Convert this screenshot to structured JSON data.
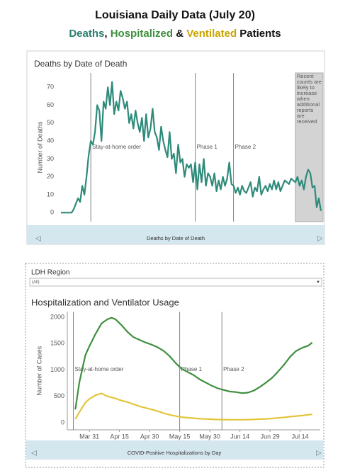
{
  "header": {
    "title": "Louisiana Daily Data (July 20)",
    "subtitle": [
      {
        "text": "Deaths",
        "color": "#2a7f6f"
      },
      {
        "text": ", ",
        "color": "#111111"
      },
      {
        "text": "Hospitalized",
        "color": "#3f8f3f"
      },
      {
        "text": " & ",
        "color": "#111111"
      },
      {
        "text": "Ventilated",
        "color": "#c9a400"
      },
      {
        "text": " Patients",
        "color": "#111111"
      }
    ]
  },
  "chart_data": [
    {
      "type": "line",
      "title": "Deaths by Date of Death",
      "y_label": "Number of Deaths",
      "footer": "Deaths by Date of Death",
      "xlim": [
        66,
        191
      ],
      "ylim": [
        -5,
        78
      ],
      "yticks": [
        0,
        10,
        20,
        30,
        40,
        50,
        60,
        70
      ],
      "grid": false,
      "x": [
        68,
        69,
        70,
        71,
        72,
        73,
        74,
        75,
        76,
        77,
        78,
        79,
        80,
        81,
        82,
        83,
        84,
        85,
        86,
        87,
        88,
        89,
        90,
        91,
        92,
        93,
        94,
        95,
        96,
        97,
        98,
        99,
        100,
        101,
        102,
        103,
        104,
        105,
        106,
        107,
        108,
        109,
        110,
        111,
        112,
        113,
        114,
        115,
        116,
        117,
        118,
        119,
        120,
        121,
        122,
        123,
        124,
        125,
        126,
        127,
        128,
        129,
        130,
        131,
        132,
        133,
        134,
        135,
        136,
        137,
        138,
        139,
        140,
        141,
        142,
        143,
        144,
        145,
        146,
        147,
        148,
        149,
        150,
        151,
        152,
        153,
        154,
        155,
        156,
        157,
        158,
        159,
        160,
        161,
        162,
        163,
        164,
        165,
        166,
        167,
        168,
        169,
        170,
        171,
        172,
        173,
        174,
        175,
        176,
        177,
        178,
        179,
        180,
        181,
        182,
        183,
        184,
        185,
        186,
        187,
        188,
        189,
        190
      ],
      "series": [
        {
          "color": "#2e8b7a",
          "values": [
            0,
            0,
            0,
            0,
            0,
            0,
            2,
            5,
            8,
            6,
            15,
            10,
            20,
            32,
            40,
            38,
            45,
            60,
            57,
            40,
            62,
            58,
            70,
            60,
            73,
            55,
            62,
            57,
            68,
            64,
            58,
            62,
            50,
            55,
            47,
            57,
            50,
            45,
            53,
            40,
            55,
            42,
            47,
            58,
            45,
            42,
            35,
            48,
            40,
            35,
            31,
            45,
            30,
            33,
            22,
            38,
            28,
            30,
            20,
            27,
            25,
            27,
            17,
            28,
            13,
            27,
            17,
            30,
            15,
            22,
            20,
            15,
            22,
            12,
            18,
            13,
            20,
            15,
            19,
            28,
            16,
            15,
            11,
            14,
            10,
            15,
            12,
            11,
            14,
            17,
            9,
            14,
            12,
            20,
            10,
            13,
            15,
            12,
            16,
            13,
            18,
            13,
            17,
            12,
            15,
            18,
            17,
            16,
            19,
            18,
            17,
            20,
            15,
            18,
            13,
            20,
            24,
            22,
            14,
            15,
            3,
            8,
            1
          ]
        }
      ],
      "annotations": [
        {
          "x": 82,
          "text": "Stay-at-home order"
        },
        {
          "x": 131,
          "text": "Phase 1"
        },
        {
          "x": 149,
          "text": "Phase 2"
        }
      ],
      "shaded_region": {
        "from": 178,
        "to": 191,
        "text": "Recent counts are likely to increase when additional reports are received"
      }
    },
    {
      "type": "line",
      "title": "Hospitalization and Ventilator Usage",
      "y_label": "Number of Cases",
      "footer": "COVID-Positive Hospitalizations by Day",
      "filter": {
        "label": "LDH Region",
        "value": "(All)"
      },
      "xlim": [
        80,
        206
      ],
      "ylim": [
        -135,
        2100
      ],
      "yticks": [
        0,
        500,
        1000,
        1500,
        2000
      ],
      "grid": false,
      "xticks": [
        {
          "value": 91,
          "label": "Mar 31"
        },
        {
          "value": 106,
          "label": "Apr 15"
        },
        {
          "value": 121,
          "label": "Apr 30"
        },
        {
          "value": 136,
          "label": "May 15"
        },
        {
          "value": 151,
          "label": "May 30"
        },
        {
          "value": 166,
          "label": "Jun 14"
        },
        {
          "value": 181,
          "label": "Jun 29"
        },
        {
          "value": 196,
          "label": "Jul 14"
        }
      ],
      "x": [
        84,
        86,
        89,
        91,
        94,
        97,
        100,
        102,
        104,
        107,
        110,
        113,
        116,
        119,
        122,
        125,
        128,
        131,
        134,
        137,
        140,
        143,
        146,
        149,
        152,
        155,
        158,
        161,
        164,
        167,
        170,
        173,
        176,
        179,
        182,
        185,
        188,
        191,
        194,
        197,
        200,
        202
      ],
      "series": [
        {
          "color": "#3f8f3f",
          "values": [
            250,
            765,
            1280,
            1450,
            1680,
            1880,
            1960,
            1990,
            1960,
            1850,
            1720,
            1620,
            1570,
            1520,
            1480,
            1430,
            1360,
            1260,
            1130,
            1020,
            960,
            900,
            820,
            760,
            700,
            650,
            620,
            590,
            580,
            560,
            570,
            610,
            680,
            760,
            850,
            970,
            1100,
            1250,
            1360,
            1420,
            1460,
            1520
          ]
        },
        {
          "color": "#e3c53c",
          "values": [
            70,
            200,
            380,
            450,
            520,
            555,
            500,
            480,
            460,
            420,
            390,
            350,
            310,
            280,
            250,
            220,
            180,
            150,
            125,
            105,
            95,
            85,
            75,
            70,
            65,
            60,
            58,
            55,
            55,
            55,
            58,
            62,
            68,
            72,
            80,
            90,
            100,
            115,
            125,
            135,
            150,
            160
          ]
        }
      ],
      "annotations": [
        {
          "x": 83,
          "text": "Stay-at-home order"
        },
        {
          "x": 136,
          "text": "Phase 1"
        },
        {
          "x": 157,
          "text": "Phase 2"
        }
      ]
    }
  ]
}
